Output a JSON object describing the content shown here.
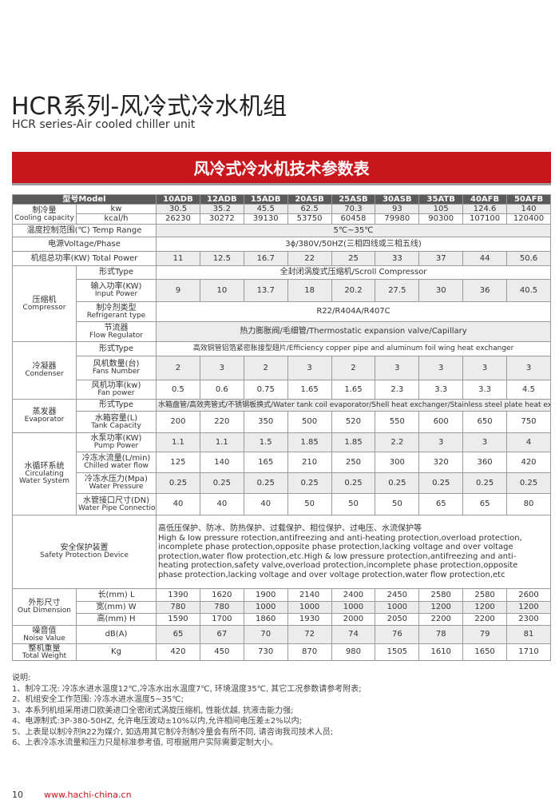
{
  "header": {
    "title": "HCR系列-风冷式冷水机组",
    "subtitle": "HCR series-Air cooled chiller unit"
  },
  "banner": "风冷式冷水机技术参数表",
  "table": {
    "header": [
      "型号Model",
      "10ADB",
      "12ADB",
      "15ADB",
      "20ASB",
      "25ASB",
      "30ASB",
      "35ATB",
      "40AFB",
      "50AFB"
    ],
    "groups": [
      {
        "label": [
          "制冷量",
          "Cooling capacity"
        ],
        "rows": [
          {
            "label": [
              "kw"
            ],
            "values": [
              30.5,
              35.2,
              45.5,
              62.5,
              70.3,
              93,
              105,
              124.6,
              140
            ]
          },
          {
            "label": [
              "kcal/h"
            ],
            "values": [
              26230,
              30272,
              39130,
              53750,
              60458,
              79980,
              90300,
              107100,
              120400
            ]
          }
        ]
      },
      {
        "label": [
          "温度控制范围(℃) Temp Range"
        ],
        "value": "5℃~35℃"
      },
      {
        "label": [
          "电源Voltage/Phase"
        ],
        "value": "3ϕ/380V/50HZ(三相四线或三相五线)"
      },
      {
        "label": [
          "机组总功率(KW) Total Power"
        ],
        "values": [
          11,
          12.5,
          16.7,
          22,
          25,
          33,
          37,
          44,
          50.6
        ]
      },
      {
        "label": [
          "压缩机",
          "Compressor"
        ],
        "rows": [
          {
            "label": [
              "形式Type"
            ],
            "value": "全封闭涡旋式压缩机/Scroll Compressor"
          },
          {
            "label": [
              "输入功率(KW)",
              "Input Power"
            ],
            "values": [
              9,
              10,
              13.7,
              18,
              20.2,
              27.5,
              30,
              36,
              40.5
            ]
          },
          {
            "label": [
              "制冷剂类型",
              "Refrigerant type"
            ],
            "value": "R22/R404A/R407C"
          },
          {
            "label": [
              "节流器",
              "Flow Regulator"
            ],
            "value": "热力膨胀阀/毛细管/Thermostatic expansion valve/Capillary"
          }
        ]
      },
      {
        "label": [
          "冷凝器",
          "Condenser"
        ],
        "rows": [
          {
            "label": [
              "形式Type"
            ],
            "value": "高效铜管铝箔紧密胀接型翅片/Efficiency copper pipe and aluminum foil wing heat exchanger"
          },
          {
            "label": [
              "风机数量(台)",
              "Fans Number"
            ],
            "values": [
              2,
              3,
              2,
              3,
              2,
              3,
              3,
              3,
              3
            ]
          },
          {
            "label": [
              "风机功率(kw)",
              "Fan power"
            ],
            "values": [
              0.5,
              0.6,
              0.75,
              1.65,
              1.65,
              2.3,
              3.3,
              3.3,
              4.5
            ]
          }
        ]
      },
      {
        "label": [
          "蒸发器",
          "Evaporator"
        ],
        "rows": [
          {
            "label": [
              "形式Type"
            ],
            "value": "水箱盘管/高效壳管式/不锈钢板换式/Water tank coil evaporator/Shell heat exchanger/Stainless steel plate heat exchanger"
          },
          {
            "label": [
              "水箱容量(L)",
              "Tank Capacity"
            ],
            "values": [
              200,
              220,
              350,
              500,
              520,
              550,
              600,
              650,
              750
            ]
          }
        ]
      },
      {
        "label": [
          "水循环系统",
          "Circulating",
          "Water System"
        ],
        "rows": [
          {
            "label": [
              "水泵功率(KW)",
              "Pump Power"
            ],
            "values": [
              1.1,
              1.1,
              1.5,
              1.85,
              1.85,
              2.2,
              3,
              3,
              4
            ]
          },
          {
            "label": [
              "冷冻水流量(L/min)",
              "Chilled water flow"
            ],
            "values": [
              125,
              140,
              165,
              210,
              250,
              300,
              320,
              360,
              420
            ]
          },
          {
            "label": [
              "冷冻水压力(Mpa)",
              "Water Pressure"
            ],
            "values": [
              0.25,
              0.25,
              0.25,
              0.25,
              0.25,
              0.25,
              0.25,
              0.25,
              0.25
            ]
          },
          {
            "label": [
              "水管接口尺寸(DN)",
              "Water Pipe Connection"
            ],
            "values": [
              40,
              40,
              40,
              50,
              50,
              50,
              65,
              65,
              80
            ]
          }
        ]
      },
      {
        "label": [
          "安全保护装置",
          "Safety Protection Device"
        ],
        "text": [
          "高低压保护、防冰、防热保护、过载保护、相位保护、过电压、水流保护等",
          "High & low pressure rotection,antifreezing and anti-heating protection,overload protection,",
          "incomplete phase protection,opposite phase protection,lacking voltage and over voltage",
          "protection,water flow protection,etc.High & low pressure protection,antifreezing and anti-",
          "heating protection,safety valve,overload protection,incomplete phase protection,opposite",
          "phase protection,lacking voltage and over voltage protection,water flow protection,etc"
        ]
      },
      {
        "label": [
          "外形尺寸",
          "Out Dimension"
        ],
        "rows": [
          {
            "label": [
              "长(mm) L"
            ],
            "values": [
              1390,
              1620,
              1900,
              2140,
              2400,
              2450,
              2580,
              2580,
              2600
            ]
          },
          {
            "label": [
              "宽(mm) W"
            ],
            "values": [
              780,
              780,
              1000,
              1000,
              1000,
              1000,
              1200,
              1200,
              1200
            ]
          },
          {
            "label": [
              "高(mm) H"
            ],
            "values": [
              1590,
              1700,
              1860,
              1930,
              2000,
              2050,
              2200,
              2200,
              2300
            ]
          }
        ]
      },
      {
        "label": [
          "噪音值",
          "Noise Value"
        ],
        "rows": [
          {
            "label": [
              "dB(A)"
            ],
            "values": [
              65,
              67,
              70,
              72,
              74,
              76,
              78,
              79,
              81
            ]
          }
        ]
      },
      {
        "label": [
          "整机重量",
          "Total Weight"
        ],
        "rows": [
          {
            "label": [
              "Kg"
            ],
            "values": [
              420,
              450,
              730,
              870,
              980,
              1505,
              1610,
              1650,
              1710
            ]
          }
        ]
      }
    ]
  },
  "notes": [
    "说明:",
    "1、制冷工况: 冷冻水进水温度12℃,冷冻水出水温度7℃, 环境温度35℃, 其它工况参数请参考附表;",
    "2、机组安全工作范围: 冷冻水进水温度5~35℃;",
    "3、本系列机组采用进口欧美进口全密闭式涡旋压缩机, 性能优越, 抗液击能力强;",
    "4、电源制式:3P-380-50HZ, 允许电压波动±10%以内,允许相间电压差±2%以内;",
    "5、上表是以制冷剂R22为媒介, 如选用其它制冷剂制冷量会有所不同, 请咨询我司技术人员;",
    "6、上表冷冻水流量和压力只是标准参考值, 可根据用户实际需要定制大小。"
  ],
  "footer": {
    "page": "10",
    "url": "www.hachi-china.cn"
  }
}
